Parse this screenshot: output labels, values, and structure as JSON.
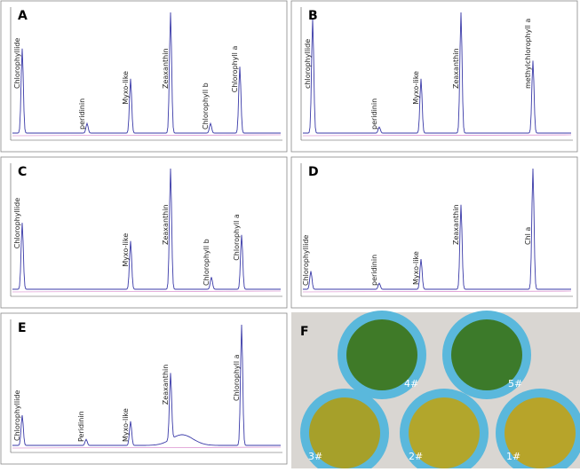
{
  "panels": [
    {
      "letter": "A",
      "peaks": [
        "Chlorophyllide",
        "peridinin",
        "Myxo-like",
        "Zeaxanthin",
        "Chlorophyll b",
        "Chlorophyll a"
      ]
    },
    {
      "letter": "B",
      "peaks": [
        "chlorophyllide",
        "peridinin",
        "Myxo-like",
        "Zeaxanthin",
        "methylchlorophyll a"
      ]
    },
    {
      "letter": "C",
      "peaks": [
        "Chlorophyllide",
        "Myxo-like",
        "Zeaxanthin",
        "Chlorophyll b",
        "Chlorophyll a"
      ]
    },
    {
      "letter": "D",
      "peaks": [
        "Chlorophyllide",
        "peridinin",
        "Myxo-like",
        "Zeaxanthin",
        "Chl a"
      ]
    },
    {
      "letter": "E",
      "peaks": [
        "Chlorophyllide",
        "Peridinin",
        "Myxo-like",
        "Zeaxanthin",
        "Chlorophyll a"
      ]
    }
  ],
  "photo": {
    "letter": "F",
    "samples": [
      "4#",
      "5#",
      "3#",
      "2#",
      "1#"
    ]
  }
}
